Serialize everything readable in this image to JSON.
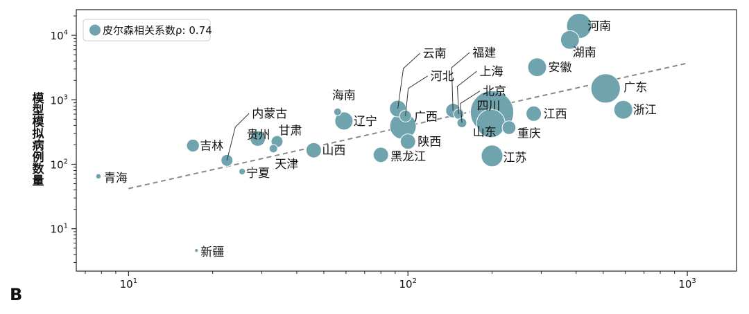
{
  "panel_label": "B",
  "chart_data": {
    "type": "scatter",
    "xscale": "log",
    "yscale": "log",
    "xlim": [
      6.5,
      1500
    ],
    "ylim": [
      2.2,
      25000
    ],
    "xticks": [
      {
        "value": 10,
        "base": "10",
        "exp": "1"
      },
      {
        "value": 100,
        "base": "10",
        "exp": "2"
      },
      {
        "value": 1000,
        "base": "10",
        "exp": "3"
      }
    ],
    "yticks": [
      {
        "value": 10,
        "base": "10",
        "exp": "1"
      },
      {
        "value": 100,
        "base": "10",
        "exp": "2"
      },
      {
        "value": 1000,
        "base": "10",
        "exp": "3"
      },
      {
        "value": 10000,
        "base": "10",
        "exp": "4"
      }
    ],
    "ylabel": "模型模拟病例数量",
    "xlabel": "",
    "legend": {
      "label": "皮尔森相关系数ρ: 0.74",
      "placement": "top-left"
    },
    "marker_color": "#6fa3ad",
    "trend_color": "#888888",
    "trend_line": {
      "x": [
        10,
        1000
      ],
      "y": [
        42,
        3700
      ]
    },
    "points": [
      {
        "name": "河南",
        "x": 410,
        "y": 14000,
        "size": 270
      },
      {
        "name": "湖南",
        "x": 380,
        "y": 8500,
        "size": 150
      },
      {
        "name": "安徽",
        "x": 290,
        "y": 3200,
        "size": 150
      },
      {
        "name": "广东",
        "x": 510,
        "y": 1500,
        "size": 370
      },
      {
        "name": "浙江",
        "x": 590,
        "y": 700,
        "size": 150
      },
      {
        "name": "江西",
        "x": 282,
        "y": 610,
        "size": 100
      },
      {
        "name": "重庆",
        "x": 230,
        "y": 370,
        "size": 80
      },
      {
        "name": "四川",
        "x": 200,
        "y": 640,
        "size": 800
      },
      {
        "name": "山东",
        "x": 198,
        "y": 430,
        "size": 350
      },
      {
        "name": "江苏",
        "x": 200,
        "y": 135,
        "size": 200
      },
      {
        "name": "福建",
        "x": 145,
        "y": 680,
        "size": 90
      },
      {
        "name": "上海",
        "x": 152,
        "y": 600,
        "size": 45
      },
      {
        "name": "北京",
        "x": 156,
        "y": 440,
        "size": 40
      },
      {
        "name": "云南",
        "x": 92,
        "y": 730,
        "size": 120
      },
      {
        "name": "河北",
        "x": 98,
        "y": 560,
        "size": 60
      },
      {
        "name": "广西",
        "x": 96,
        "y": 390,
        "size": 300
      },
      {
        "name": "陕西",
        "x": 100,
        "y": 225,
        "size": 100
      },
      {
        "name": "黑龙江",
        "x": 80,
        "y": 140,
        "size": 100
      },
      {
        "name": "海南",
        "x": 56,
        "y": 650,
        "size": 25
      },
      {
        "name": "辽宁",
        "x": 59,
        "y": 470,
        "size": 140
      },
      {
        "name": "山西",
        "x": 46,
        "y": 165,
        "size": 100
      },
      {
        "name": "甘肃",
        "x": 34,
        "y": 225,
        "size": 60
      },
      {
        "name": "天津",
        "x": 33,
        "y": 175,
        "size": 30
      },
      {
        "name": "贵州",
        "x": 29,
        "y": 250,
        "size": 100
      },
      {
        "name": "吉林",
        "x": 17,
        "y": 195,
        "size": 70
      },
      {
        "name": "内蒙古",
        "x": 22.5,
        "y": 115,
        "size": 60
      },
      {
        "name": "宁夏",
        "x": 25.5,
        "y": 77,
        "size": 18
      },
      {
        "name": "青海",
        "x": 7.8,
        "y": 65,
        "size": 12
      },
      {
        "name": "新疆",
        "x": 17.5,
        "y": 4.6,
        "size": 6
      }
    ]
  }
}
